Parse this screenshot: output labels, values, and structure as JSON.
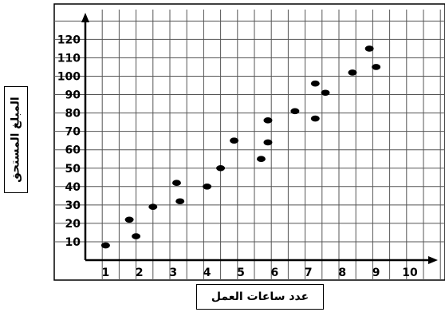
{
  "chart_data": {
    "type": "scatter",
    "title": "",
    "xlabel": "عدد ساعات العمل",
    "ylabel": "المبلغ المستحق",
    "xlim": [
      0,
      10
    ],
    "ylim": [
      0,
      120
    ],
    "x_ticks": [
      1,
      2,
      3,
      4,
      5,
      6,
      7,
      8,
      9,
      10
    ],
    "y_ticks": [
      10,
      20,
      30,
      40,
      50,
      60,
      70,
      80,
      90,
      100,
      110,
      120
    ],
    "grid": true,
    "points": [
      {
        "x": 0.6,
        "y": 8
      },
      {
        "x": 1.3,
        "y": 22
      },
      {
        "x": 1.5,
        "y": 13
      },
      {
        "x": 2.0,
        "y": 29
      },
      {
        "x": 2.7,
        "y": 42
      },
      {
        "x": 2.8,
        "y": 32
      },
      {
        "x": 3.6,
        "y": 40
      },
      {
        "x": 4.0,
        "y": 50
      },
      {
        "x": 4.4,
        "y": 65
      },
      {
        "x": 5.2,
        "y": 55
      },
      {
        "x": 5.4,
        "y": 76
      },
      {
        "x": 5.4,
        "y": 64
      },
      {
        "x": 6.2,
        "y": 81
      },
      {
        "x": 6.8,
        "y": 96
      },
      {
        "x": 6.8,
        "y": 77
      },
      {
        "x": 7.1,
        "y": 91
      },
      {
        "x": 7.9,
        "y": 102
      },
      {
        "x": 8.4,
        "y": 115
      },
      {
        "x": 8.6,
        "y": 105
      }
    ],
    "point_color": "#000000",
    "grid_color": "#555555"
  }
}
